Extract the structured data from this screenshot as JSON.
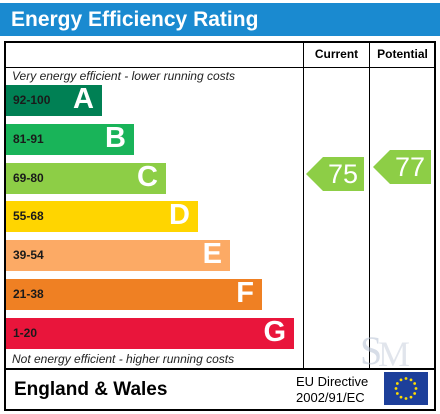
{
  "title": "Energy Efficiency Rating",
  "columns": {
    "current": "Current",
    "potential": "Potential"
  },
  "captions": {
    "top": "Very energy efficient - lower running costs",
    "bottom": "Not energy efficient - higher running costs"
  },
  "chart_data": {
    "type": "bar",
    "bands": [
      {
        "range": "92-100",
        "letter": "A",
        "color": "#008054"
      },
      {
        "range": "81-91",
        "letter": "B",
        "color": "#19b459"
      },
      {
        "range": "69-80",
        "letter": "C",
        "color": "#8dce46"
      },
      {
        "range": "55-68",
        "letter": "D",
        "color": "#ffd500"
      },
      {
        "range": "39-54",
        "letter": "E",
        "color": "#fcaa65"
      },
      {
        "range": "21-38",
        "letter": "F",
        "color": "#ef8023"
      },
      {
        "range": "1-20",
        "letter": "G",
        "color": "#e9153b"
      }
    ],
    "current": {
      "value": "75",
      "band": "C",
      "color": "#8dce46"
    },
    "potential": {
      "value": "77",
      "band": "C",
      "color": "#8dce46"
    }
  },
  "footer": {
    "region": "England & Wales",
    "directive_line1": "EU Directive",
    "directive_line2": "2002/91/EC"
  },
  "icons": {
    "flag": "eu-flag-icon",
    "watermark": "agency-monogram-watermark"
  }
}
